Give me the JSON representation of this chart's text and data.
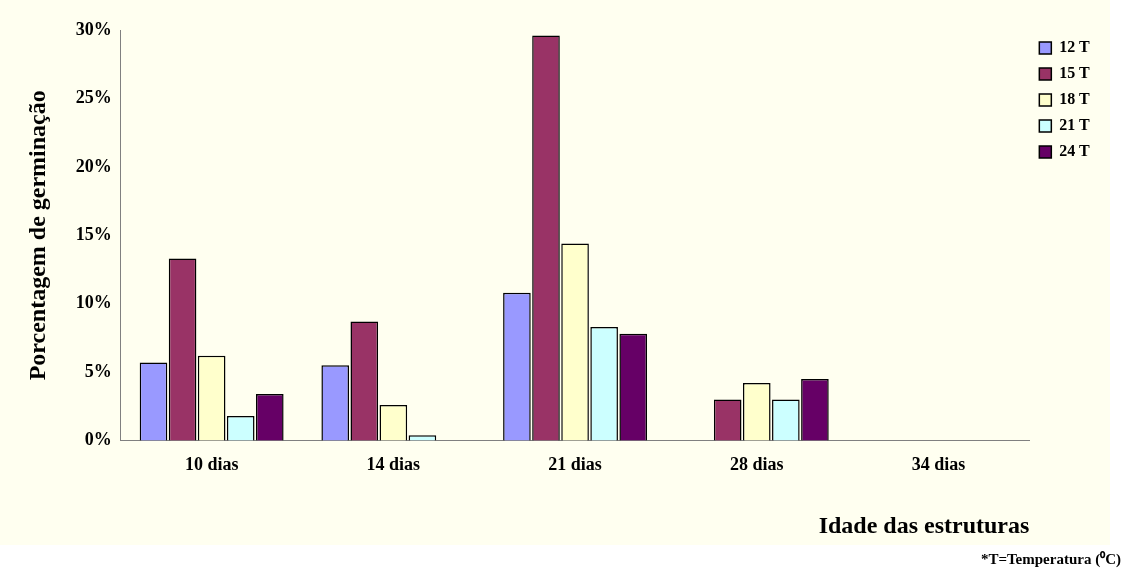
{
  "chart_data": {
    "type": "bar",
    "xlabel": "Idade das estruturas",
    "ylabel": "Porcentagem de germinação",
    "categories": [
      "10 dias",
      "14 dias",
      "21 dias",
      "28 dias",
      "34 dias"
    ],
    "series": [
      {
        "name": "12 T",
        "color": "#9999ff",
        "values": [
          5.7,
          5.5,
          10.8,
          0,
          0
        ]
      },
      {
        "name": "15 T",
        "color": "#993366",
        "values": [
          13.3,
          8.7,
          29.6,
          3.0,
          0
        ]
      },
      {
        "name": "18 T",
        "color": "#ffffcc",
        "values": [
          6.2,
          2.6,
          14.4,
          4.2,
          0
        ]
      },
      {
        "name": "21 T",
        "color": "#ccffff",
        "values": [
          1.8,
          0.4,
          8.3,
          3.0,
          0
        ]
      },
      {
        "name": "24 T",
        "color": "#660066",
        "values": [
          3.4,
          0,
          7.8,
          4.5,
          0
        ]
      }
    ],
    "ylim": [
      0,
      30
    ],
    "yticks": [
      {
        "value": 0,
        "label": "0%"
      },
      {
        "value": 5,
        "label": "5%"
      },
      {
        "value": 10,
        "label": "10%"
      },
      {
        "value": 15,
        "label": "15%"
      },
      {
        "value": 20,
        "label": "20%"
      },
      {
        "value": 25,
        "label": "25%"
      },
      {
        "value": 30,
        "label": "30%"
      }
    ],
    "grid": false,
    "legend": "top right",
    "annotations": [
      "*T=Temperatura (⁰C)"
    ]
  }
}
